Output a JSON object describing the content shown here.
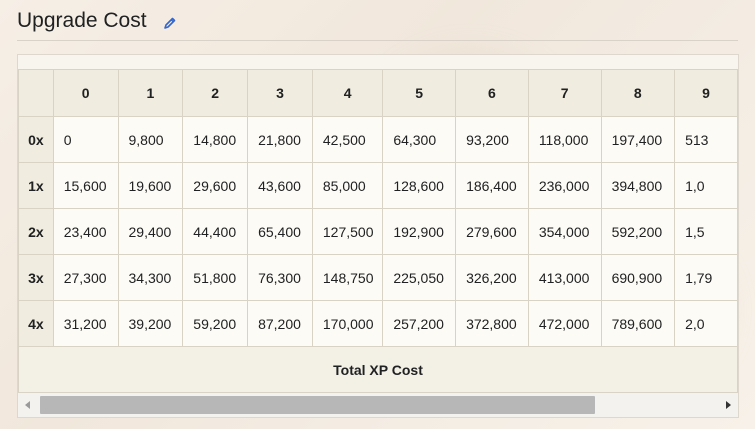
{
  "heading": {
    "title": "Upgrade Cost",
    "edit_icon": "pencil-icon"
  },
  "table": {
    "columns": [
      "",
      "0",
      "1",
      "2",
      "3",
      "4",
      "5",
      "6",
      "7",
      "8",
      "9"
    ],
    "rows": [
      {
        "label": "0x",
        "cells": [
          "0",
          "9,800",
          "14,800",
          "21,800",
          "42,500",
          "64,300",
          "93,200",
          "118,000",
          "197,400",
          "513"
        ]
      },
      {
        "label": "1x",
        "cells": [
          "15,600",
          "19,600",
          "29,600",
          "43,600",
          "85,000",
          "128,600",
          "186,400",
          "236,000",
          "394,800",
          "1,0"
        ]
      },
      {
        "label": "2x",
        "cells": [
          "23,400",
          "29,400",
          "44,400",
          "65,400",
          "127,500",
          "192,900",
          "279,600",
          "354,000",
          "592,200",
          "1,5"
        ]
      },
      {
        "label": "3x",
        "cells": [
          "27,300",
          "34,300",
          "51,800",
          "76,300",
          "148,750",
          "225,050",
          "326,200",
          "413,000",
          "690,900",
          "1,79"
        ]
      },
      {
        "label": "4x",
        "cells": [
          "31,200",
          "39,200",
          "59,200",
          "87,200",
          "170,000",
          "257,200",
          "372,800",
          "472,000",
          "789,600",
          "2,0"
        ]
      }
    ],
    "caption": "Total XP Cost"
  },
  "scrollbar": {
    "left_icon": "arrow-left-icon",
    "right_icon": "arrow-right-icon",
    "position_fraction": 0.0,
    "visible_fraction": 0.79
  }
}
